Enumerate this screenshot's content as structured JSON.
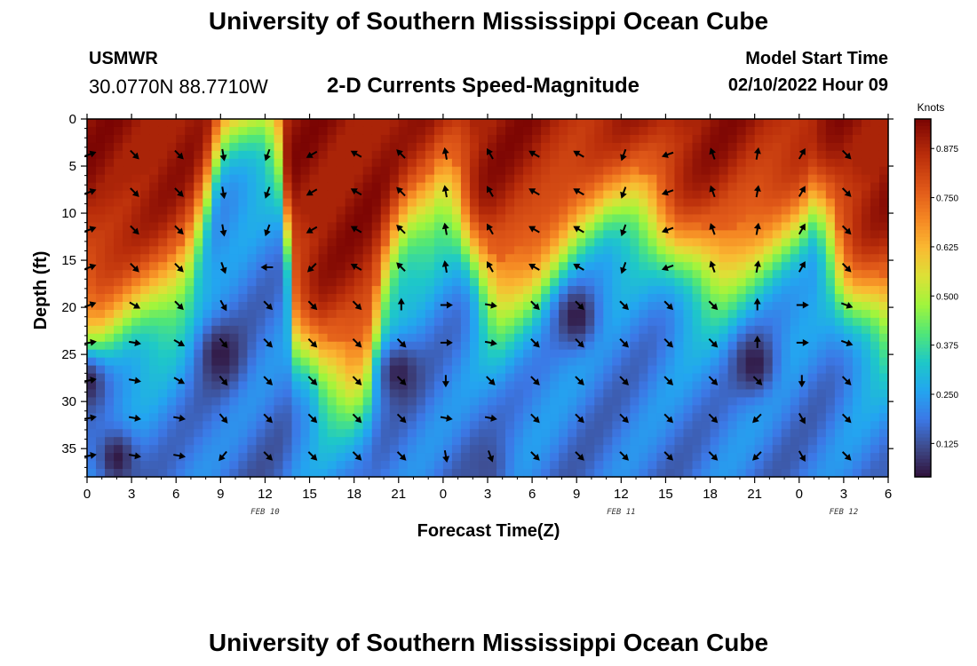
{
  "header": {
    "title": "University of Southern Mississippi Ocean Cube",
    "station_name": "USMWR",
    "station_coords": "30.0770N  88.7710W",
    "subtitle": "2-D Currents Speed-Magnitude",
    "model_start_label": "Model Start Time",
    "model_start_value": "02/10/2022 Hour 09"
  },
  "footer": {
    "title": "University of Southern Mississippi Ocean Cube"
  },
  "chart_data": {
    "type": "heatmap",
    "title": "2-D Currents Speed-Magnitude",
    "xlabel": "Forecast Time(Z)",
    "ylabel": "Depth (ft)",
    "x_hours_range": [
      0,
      54
    ],
    "x_tick_hours": [
      0,
      3,
      6,
      9,
      12,
      15,
      18,
      21,
      24,
      27,
      30,
      33,
      36,
      39,
      42,
      45,
      48,
      51,
      54
    ],
    "x_tick_labels": [
      "0",
      "3",
      "6",
      "9",
      "12",
      "15",
      "18",
      "21",
      "0",
      "3",
      "6",
      "9",
      "12",
      "15",
      "18",
      "21",
      "0",
      "3",
      "6"
    ],
    "date_labels": [
      {
        "hour": 12,
        "label": "FEB 10"
      },
      {
        "hour": 36,
        "label": "FEB 11"
      },
      {
        "hour": 51,
        "label": "FEB 12"
      }
    ],
    "ylim": [
      0,
      38
    ],
    "y_ticks": [
      0,
      5,
      10,
      15,
      20,
      25,
      30,
      35
    ],
    "colorbar": {
      "label": "Knots",
      "range": [
        0.04,
        0.95
      ],
      "ticks": [
        0.125,
        0.25,
        0.375,
        0.5,
        0.625,
        0.75,
        0.875
      ],
      "tick_labels": [
        "0.125",
        "0.250",
        "0.375",
        "0.500",
        "0.625",
        "0.750",
        "0.875"
      ]
    },
    "speed_model": {
      "surface_layer_depth_ft_control_points": [
        [
          0,
          22
        ],
        [
          1,
          22
        ],
        [
          2,
          21
        ],
        [
          3,
          20
        ],
        [
          5,
          19
        ],
        [
          6,
          18
        ],
        [
          7,
          15
        ],
        [
          8,
          9
        ],
        [
          9,
          1
        ],
        [
          10,
          0
        ],
        [
          11,
          0
        ],
        [
          12,
          0
        ],
        [
          13,
          3
        ],
        [
          14,
          22
        ],
        [
          16,
          27
        ],
        [
          18,
          28
        ],
        [
          19,
          26
        ],
        [
          20,
          18
        ],
        [
          21,
          13
        ],
        [
          22,
          11
        ],
        [
          23,
          10
        ],
        [
          24,
          8
        ],
        [
          25,
          9
        ],
        [
          26,
          14
        ],
        [
          27,
          18
        ],
        [
          28,
          19
        ],
        [
          30,
          17
        ],
        [
          31,
          15
        ],
        [
          32,
          13
        ],
        [
          33,
          11
        ],
        [
          34,
          10
        ],
        [
          35,
          9
        ],
        [
          36,
          9
        ],
        [
          37,
          9
        ],
        [
          38,
          10
        ],
        [
          39,
          12
        ],
        [
          40,
          14
        ],
        [
          41,
          15
        ],
        [
          42,
          16
        ],
        [
          43,
          16
        ],
        [
          44,
          15
        ],
        [
          45,
          14
        ],
        [
          46,
          13
        ],
        [
          47,
          12
        ],
        [
          48,
          11
        ],
        [
          49,
          9
        ],
        [
          50,
          12
        ],
        [
          51,
          17
        ],
        [
          52,
          19
        ],
        [
          53,
          20
        ],
        [
          54,
          21
        ]
      ],
      "low_speed_cores": [
        {
          "hour": 9,
          "depth_ft": 25,
          "speed_knots": 0.05
        },
        {
          "hour": 21,
          "depth_ft": 27,
          "speed_knots": 0.06
        },
        {
          "hour": 33,
          "depth_ft": 21,
          "speed_knots": 0.05
        },
        {
          "hour": 45,
          "depth_ft": 26,
          "speed_knots": 0.05
        },
        {
          "hour": 2,
          "depth_ft": 36,
          "speed_knots": 0.05
        },
        {
          "hour": 27,
          "depth_ft": 37,
          "speed_knots": 0.12
        },
        {
          "hour": 0,
          "depth_ft": 28,
          "speed_knots": 0.06
        }
      ]
    },
    "vector_grid": {
      "hours": [
        0,
        3,
        6,
        9,
        12,
        15,
        18,
        21,
        24,
        27,
        30,
        33,
        36,
        39,
        42,
        45,
        48,
        51
      ],
      "depths_ft": [
        3.75,
        7.75,
        11.75,
        15.75,
        19.75,
        23.75,
        27.75,
        31.75,
        35.75
      ],
      "direction_note": "angle in degrees clockwise from north (up), arrows show current direction",
      "angles_deg": [
        [
          70,
          135,
          135,
          170,
          200,
          240,
          300,
          315,
          350,
          330,
          300,
          300,
          200,
          250,
          340,
          10,
          30,
          135
        ],
        [
          70,
          135,
          135,
          170,
          200,
          240,
          300,
          315,
          350,
          330,
          300,
          300,
          200,
          250,
          340,
          10,
          30,
          135
        ],
        [
          70,
          135,
          135,
          170,
          200,
          240,
          300,
          315,
          350,
          330,
          300,
          300,
          200,
          250,
          340,
          10,
          30,
          135
        ],
        [
          70,
          135,
          135,
          160,
          270,
          225,
          300,
          315,
          350,
          330,
          300,
          300,
          200,
          250,
          340,
          10,
          30,
          135
        ],
        [
          70,
          120,
          135,
          150,
          135,
          135,
          135,
          0,
          90,
          100,
          135,
          135,
          135,
          135,
          135,
          0,
          90,
          110
        ],
        [
          80,
          100,
          120,
          140,
          135,
          135,
          135,
          135,
          90,
          100,
          135,
          135,
          135,
          135,
          135,
          0,
          90,
          110
        ],
        [
          80,
          100,
          120,
          140,
          135,
          135,
          135,
          135,
          180,
          135,
          135,
          135,
          135,
          135,
          135,
          135,
          180,
          135
        ],
        [
          80,
          100,
          100,
          140,
          135,
          135,
          135,
          135,
          100,
          100,
          135,
          135,
          135,
          135,
          135,
          225,
          150,
          135
        ],
        [
          80,
          100,
          100,
          220,
          135,
          135,
          135,
          135,
          170,
          160,
          135,
          135,
          135,
          135,
          135,
          225,
          150,
          135
        ]
      ]
    }
  }
}
